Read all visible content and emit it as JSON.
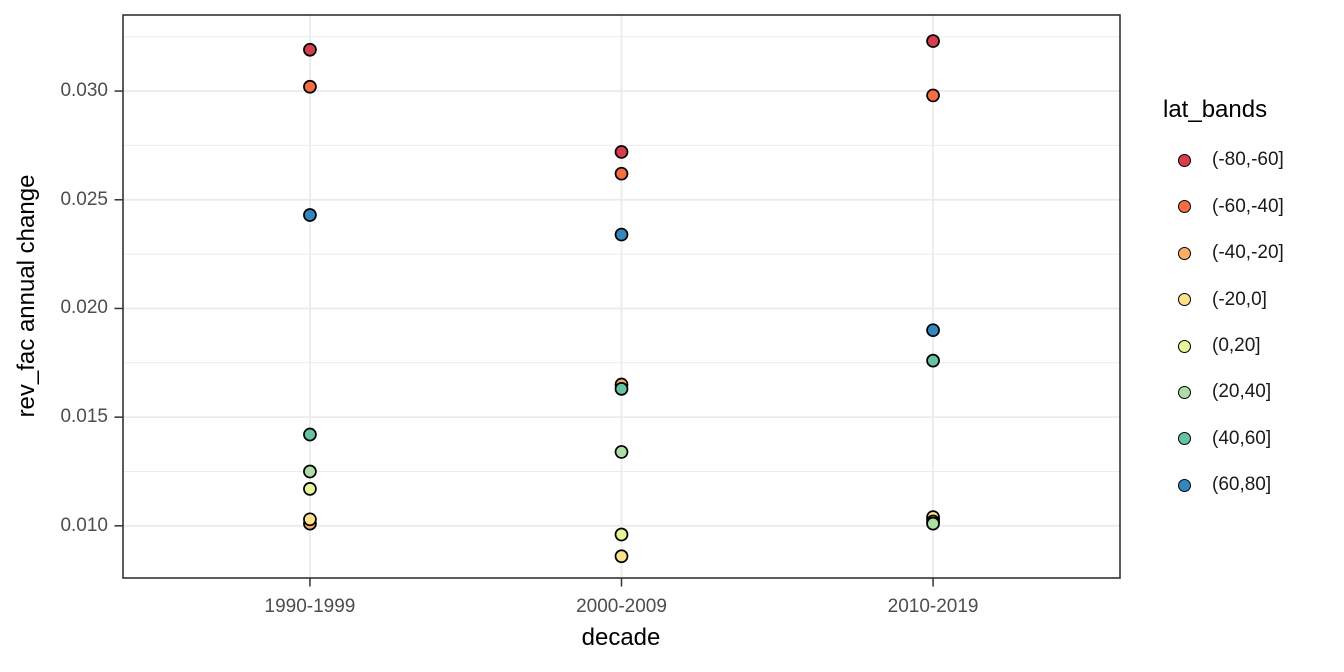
{
  "chart_data": {
    "type": "scatter",
    "title": "",
    "xlabel": "decade",
    "ylabel": "rev_fac annual change",
    "categories": [
      "1990-1999",
      "2000-2009",
      "2010-2019"
    ],
    "y_ticks": [
      0.01,
      0.015,
      0.02,
      0.025,
      0.03
    ],
    "y_tick_labels": [
      "0.010",
      "0.015",
      "0.020",
      "0.025",
      "0.030"
    ],
    "y_minor_ticks": [
      0.0125,
      0.0175,
      0.0225,
      0.0275,
      0.0325
    ],
    "ylim": [
      0.0076,
      0.0335
    ],
    "grid": true,
    "legend_position": "right",
    "legend_title": "lat_bands",
    "series": [
      {
        "name": "(-80,-60]",
        "color": "#d53e4f",
        "values": [
          0.0319,
          0.0272,
          0.0323
        ]
      },
      {
        "name": "(-60,-40]",
        "color": "#f46d43",
        "values": [
          0.0302,
          0.0262,
          0.0298
        ]
      },
      {
        "name": "(-40,-20]",
        "color": "#fdae61",
        "values": [
          0.0101,
          0.0165,
          0.0103
        ]
      },
      {
        "name": "(-20,0]",
        "color": "#fee08b",
        "values": [
          0.0103,
          0.0086,
          0.0104
        ]
      },
      {
        "name": "(0,20]",
        "color": "#e6f598",
        "values": [
          0.0117,
          0.0096,
          0.0102
        ]
      },
      {
        "name": "(20,40]",
        "color": "#abdda4",
        "values": [
          0.0125,
          0.0134,
          0.0101
        ]
      },
      {
        "name": "(40,60]",
        "color": "#66c2a5",
        "values": [
          0.0142,
          0.0163,
          0.0176
        ]
      },
      {
        "name": "(60,80]",
        "color": "#3288bd",
        "values": [
          0.0243,
          0.0234,
          0.019
        ]
      }
    ],
    "colors": {
      "background": "#ffffff",
      "grid": "#ebebeb",
      "panel_border": "#333333",
      "tick": "#333333",
      "tick_label": "#4d4d4d",
      "axis_title": "#000000",
      "legend_text": "#1a1a1a",
      "point_stroke": "#000000"
    }
  }
}
